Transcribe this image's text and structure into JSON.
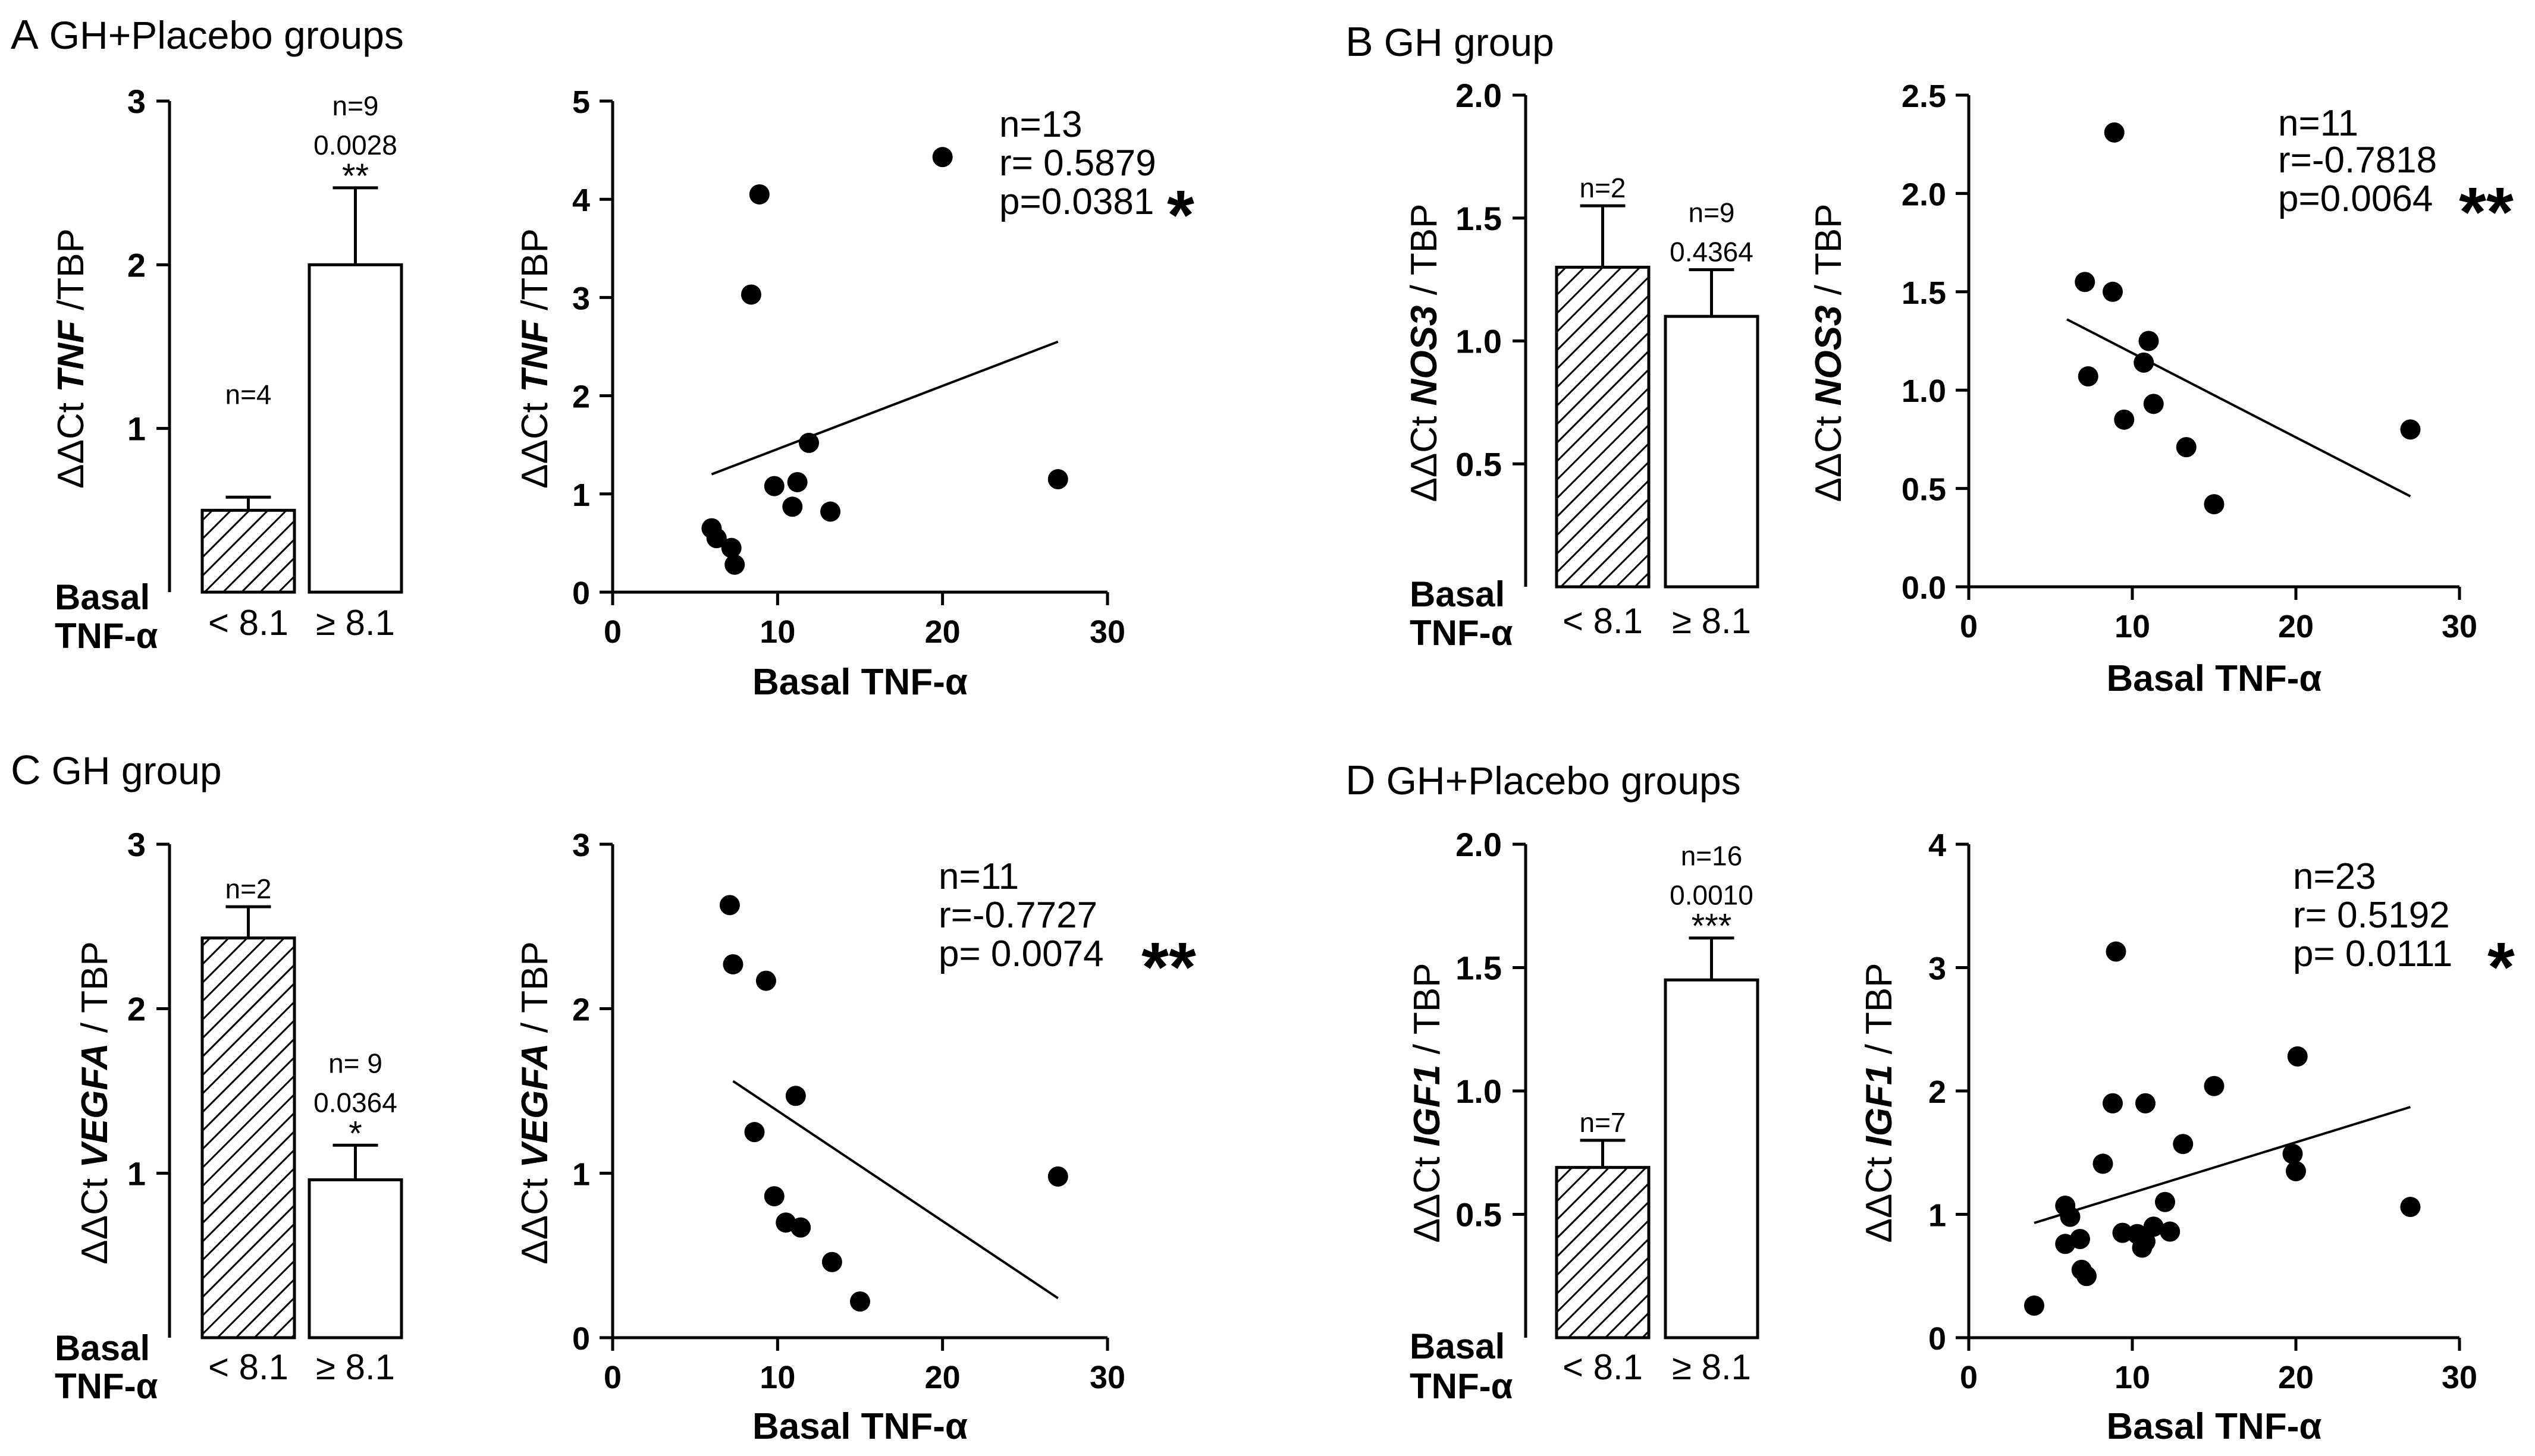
{
  "colors": {
    "ink": "#000000",
    "background": "#ffffff"
  },
  "patterns": {
    "hatched": "diagonal-hatch",
    "open": "white-fill"
  },
  "panels": {
    "A": {
      "letter": "A",
      "title": "GH+Placebo groups"
    },
    "B": {
      "letter": "B",
      "title": "GH group"
    },
    "C": {
      "letter": "C",
      "title": "GH group"
    },
    "D": {
      "letter": "D",
      "title": "GH+Placebo groups"
    }
  },
  "chart_data": [
    {
      "id": "A-bar",
      "panel": "A",
      "type": "bar",
      "categories": [
        "< 8.1",
        "≥ 8.1"
      ],
      "category_title": [
        "Basal",
        "TNF-α"
      ],
      "values": [
        0.5,
        2.0
      ],
      "errors": [
        0.08,
        0.47
      ],
      "fills": [
        "hatched",
        "open"
      ],
      "annotations": [
        [
          "n=4"
        ],
        [
          "n=9",
          "0.0028",
          "**"
        ]
      ],
      "ylabel": {
        "pre": "ΔΔCt ",
        "gene": "TNF",
        "post": " /TBP"
      },
      "ylim": [
        0,
        3
      ],
      "yticks": [
        1,
        2,
        3
      ],
      "yticklabels": [
        "1",
        "2",
        "3"
      ]
    },
    {
      "id": "A-scatter",
      "panel": "A",
      "type": "scatter",
      "points": [
        [
          6.0,
          0.65
        ],
        [
          6.3,
          0.55
        ],
        [
          7.2,
          0.45
        ],
        [
          7.4,
          0.28
        ],
        [
          8.4,
          3.03
        ],
        [
          8.9,
          4.05
        ],
        [
          9.8,
          1.08
        ],
        [
          10.9,
          0.87
        ],
        [
          11.2,
          1.12
        ],
        [
          11.9,
          1.52
        ],
        [
          13.2,
          0.82
        ],
        [
          20.0,
          4.43
        ],
        [
          27.0,
          1.15
        ]
      ],
      "fit": [
        [
          6.0,
          1.2
        ],
        [
          27.0,
          2.55
        ]
      ],
      "stats": [
        "n=13",
        "r= 0.5879",
        "p=0.0381"
      ],
      "stars": "*",
      "xlabel": "Basal TNF-α",
      "ylabel": {
        "pre": "ΔΔCt ",
        "gene": "TNF",
        "post": " /TBP"
      },
      "xlim": [
        0,
        30
      ],
      "ylim": [
        0,
        5
      ],
      "xticks": [
        0,
        10,
        20,
        30
      ],
      "xticklabels": [
        "0",
        "10",
        "20",
        "30"
      ],
      "yticks": [
        0,
        1,
        2,
        3,
        4,
        5
      ],
      "yticklabels": [
        "0",
        "1",
        "2",
        "3",
        "4",
        "5"
      ]
    },
    {
      "id": "B-bar",
      "panel": "B",
      "type": "bar",
      "categories": [
        "< 8.1",
        "≥ 8.1"
      ],
      "category_title": [
        "Basal",
        "TNF-α"
      ],
      "values": [
        1.3,
        1.1
      ],
      "errors": [
        0.25,
        0.19
      ],
      "fills": [
        "hatched",
        "open"
      ],
      "annotations": [
        [
          "n=2"
        ],
        [
          "n=9",
          "0.4364"
        ]
      ],
      "ylabel": {
        "pre": "ΔΔCt ",
        "gene": "NOS3",
        "post": " / TBP"
      },
      "ylim": [
        0,
        2.0
      ],
      "yticks": [
        0.5,
        1.0,
        1.5,
        2.0
      ],
      "yticklabels": [
        "0.5",
        "1.0",
        "1.5",
        "2.0"
      ]
    },
    {
      "id": "B-scatter",
      "panel": "B",
      "type": "scatter",
      "points": [
        [
          7.1,
          1.55
        ],
        [
          7.3,
          1.07
        ],
        [
          8.8,
          1.5
        ],
        [
          9.5,
          0.85
        ],
        [
          10.7,
          1.14
        ],
        [
          11.0,
          1.25
        ],
        [
          11.3,
          0.93
        ],
        [
          13.3,
          0.71
        ],
        [
          15.0,
          0.42
        ],
        [
          8.9,
          2.31
        ],
        [
          27.0,
          0.8
        ]
      ],
      "fit": [
        [
          6.0,
          1.36
        ],
        [
          27.0,
          0.46
        ]
      ],
      "stats": [
        "n=11",
        "r=-0.7818",
        "p=0.0064"
      ],
      "stars": "**",
      "xlabel": "Basal TNF-α",
      "ylabel": {
        "pre": "ΔΔCt ",
        "gene": "NOS3",
        "post": " / TBP"
      },
      "xlim": [
        0,
        30
      ],
      "ylim": [
        0,
        2.5
      ],
      "xticks": [
        0,
        10,
        20,
        30
      ],
      "xticklabels": [
        "0",
        "10",
        "20",
        "30"
      ],
      "yticks": [
        0,
        0.5,
        1.0,
        1.5,
        2.0,
        2.5
      ],
      "yticklabels": [
        "0.0",
        "0.5",
        "1.0",
        "1.5",
        "2.0",
        "2.5"
      ]
    },
    {
      "id": "C-bar",
      "panel": "C",
      "type": "bar",
      "categories": [
        "< 8.1",
        "≥ 8.1"
      ],
      "category_title": [
        "Basal",
        "TNF-α"
      ],
      "values": [
        2.43,
        0.96
      ],
      "errors": [
        0.19,
        0.21
      ],
      "fills": [
        "hatched",
        "open"
      ],
      "annotations": [
        [
          "n=2"
        ],
        [
          "n= 9",
          "0.0364",
          "*"
        ]
      ],
      "ylabel": {
        "pre": "ΔΔCt ",
        "gene": "VEGFA",
        "post": " / TBP"
      },
      "ylim": [
        0,
        3
      ],
      "yticks": [
        1,
        2,
        3
      ],
      "yticklabels": [
        "1",
        "2",
        "3"
      ]
    },
    {
      "id": "C-scatter",
      "panel": "C",
      "type": "scatter",
      "points": [
        [
          7.1,
          2.63
        ],
        [
          7.3,
          2.27
        ],
        [
          8.6,
          1.25
        ],
        [
          9.3,
          2.17
        ],
        [
          9.8,
          0.86
        ],
        [
          10.5,
          0.7
        ],
        [
          11.1,
          1.47
        ],
        [
          11.4,
          0.67
        ],
        [
          13.3,
          0.46
        ],
        [
          15.0,
          0.22
        ],
        [
          27.0,
          0.98
        ]
      ],
      "fit": [
        [
          7.3,
          1.56
        ],
        [
          27.0,
          0.24
        ]
      ],
      "stats": [
        "n=11",
        "r=-0.7727",
        "p= 0.0074"
      ],
      "stars": "**",
      "xlabel": "Basal TNF-α",
      "ylabel": {
        "pre": "ΔΔCt ",
        "gene": "VEGFA",
        "post": " / TBP"
      },
      "xlim": [
        0,
        30
      ],
      "ylim": [
        0,
        3
      ],
      "xticks": [
        0,
        10,
        20,
        30
      ],
      "xticklabels": [
        "0",
        "10",
        "20",
        "30"
      ],
      "yticks": [
        0,
        1,
        2,
        3
      ],
      "yticklabels": [
        "0",
        "1",
        "2",
        "3"
      ]
    },
    {
      "id": "D-bar",
      "panel": "D",
      "type": "bar",
      "categories": [
        "< 8.1",
        "≥ 8.1"
      ],
      "category_title": [
        "Basal",
        "TNF-α"
      ],
      "values": [
        0.69,
        1.45
      ],
      "errors": [
        0.11,
        0.17
      ],
      "fills": [
        "hatched",
        "open"
      ],
      "annotations": [
        [
          "n=7"
        ],
        [
          "n=16",
          "0.0010",
          "***"
        ]
      ],
      "ylabel": {
        "pre": "ΔΔCt ",
        "gene": "IGF1",
        "post": " / TBP"
      },
      "ylim": [
        0,
        2.0
      ],
      "yticks": [
        0.5,
        1.0,
        1.5,
        2.0
      ],
      "yticklabels": [
        "0.5",
        "1.0",
        "1.5",
        "2.0"
      ]
    },
    {
      "id": "D-scatter",
      "panel": "D",
      "type": "scatter",
      "points": [
        [
          4.0,
          0.26
        ],
        [
          5.9,
          1.07
        ],
        [
          5.9,
          0.76
        ],
        [
          6.2,
          0.98
        ],
        [
          6.8,
          0.8
        ],
        [
          6.9,
          0.55
        ],
        [
          7.2,
          0.5
        ],
        [
          8.2,
          1.41
        ],
        [
          8.8,
          1.9
        ],
        [
          9.0,
          3.13
        ],
        [
          9.4,
          0.85
        ],
        [
          10.3,
          0.84
        ],
        [
          10.6,
          0.73
        ],
        [
          10.8,
          1.9
        ],
        [
          10.8,
          0.78
        ],
        [
          11.3,
          0.9
        ],
        [
          12.0,
          1.1
        ],
        [
          12.3,
          0.86
        ],
        [
          13.1,
          1.57
        ],
        [
          15.0,
          2.04
        ],
        [
          19.8,
          1.49
        ],
        [
          20.0,
          1.35
        ],
        [
          20.1,
          2.28
        ],
        [
          27.0,
          1.06
        ]
      ],
      "fit": [
        [
          4.0,
          0.93
        ],
        [
          27.0,
          1.87
        ]
      ],
      "stats": [
        "n=23",
        "r= 0.5192",
        "p= 0.0111"
      ],
      "stars": "*",
      "xlabel": "Basal TNF-α",
      "ylabel": {
        "pre": "ΔΔCt ",
        "gene": "IGF1",
        "post": " / TBP"
      },
      "xlim": [
        0,
        30
      ],
      "ylim": [
        0,
        4
      ],
      "xticks": [
        0,
        10,
        20,
        30
      ],
      "xticklabels": [
        "0",
        "10",
        "20",
        "30"
      ],
      "yticks": [
        0,
        1,
        2,
        3,
        4
      ],
      "yticklabels": [
        "0",
        "1",
        "2",
        "3",
        "4"
      ]
    }
  ]
}
